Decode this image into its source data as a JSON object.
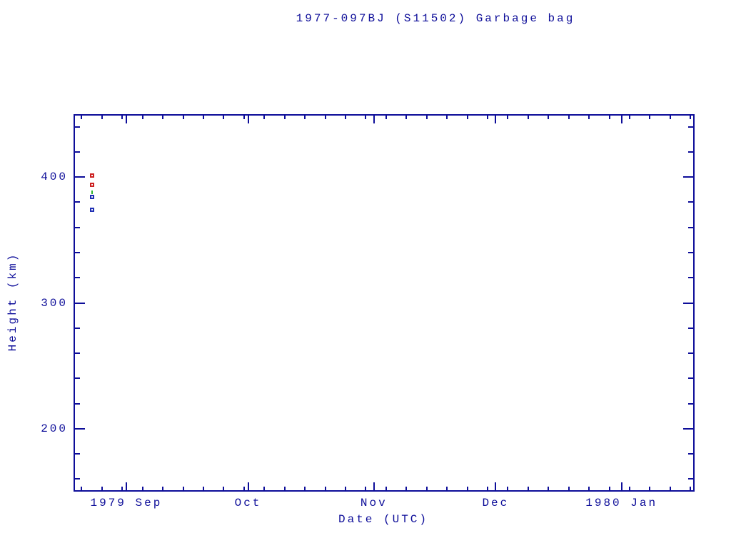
{
  "title": "1977-097BJ (S11502) Garbage bag",
  "colors": {
    "background": "#ffffff",
    "axis": "#0d0d99",
    "text": "#0d0d99",
    "red_marker": "#cc2020",
    "blue_marker": "#2030b4",
    "green_marker": "#2db42d"
  },
  "chart_data": {
    "type": "scatter",
    "title": "1977-097BJ (S11502) Garbage bag",
    "xlabel": "Date (UTC)",
    "ylabel": "Height (km)",
    "x_range": [
      "1979-08-19",
      "1980-01-19"
    ],
    "ylim": [
      150,
      450
    ],
    "grid": false,
    "legend": "none",
    "y_major_ticks": [
      {
        "value": 200,
        "label": "200"
      },
      {
        "value": 300,
        "label": "300"
      },
      {
        "value": 400,
        "label": "400"
      }
    ],
    "y_minor_ticks": [
      160,
      180,
      220,
      240,
      260,
      280,
      320,
      340,
      360,
      380,
      420,
      440
    ],
    "x_major_ticks": [
      {
        "date": "1979-09-01",
        "label": "1979 Sep"
      },
      {
        "date": "1979-10-01",
        "label": "Oct"
      },
      {
        "date": "1979-11-01",
        "label": "Nov"
      },
      {
        "date": "1979-12-01",
        "label": "Dec"
      },
      {
        "date": "1980-01-01",
        "label": "1980 Jan"
      }
    ],
    "x_minor_tick_start": "1979-08-21",
    "x_minor_tick_step_days": 5,
    "series": [
      {
        "name": "red-open-squares",
        "marker": "open-square",
        "color": "#cc2020",
        "points": [
          {
            "date": "1979-08-23T12:00:00Z",
            "height_km": 401
          },
          {
            "date": "1979-08-23T12:00:00Z",
            "height_km": 394
          }
        ]
      },
      {
        "name": "green-dash",
        "marker": "vertical-dash",
        "color": "#2db42d",
        "points": [
          {
            "date": "1979-08-23T12:00:00Z",
            "height_km": 388
          }
        ]
      },
      {
        "name": "blue-open-squares",
        "marker": "open-square",
        "color": "#2030b4",
        "points": [
          {
            "date": "1979-08-23T12:00:00Z",
            "height_km": 384
          },
          {
            "date": "1979-08-23T12:00:00Z",
            "height_km": 374
          }
        ]
      }
    ]
  }
}
